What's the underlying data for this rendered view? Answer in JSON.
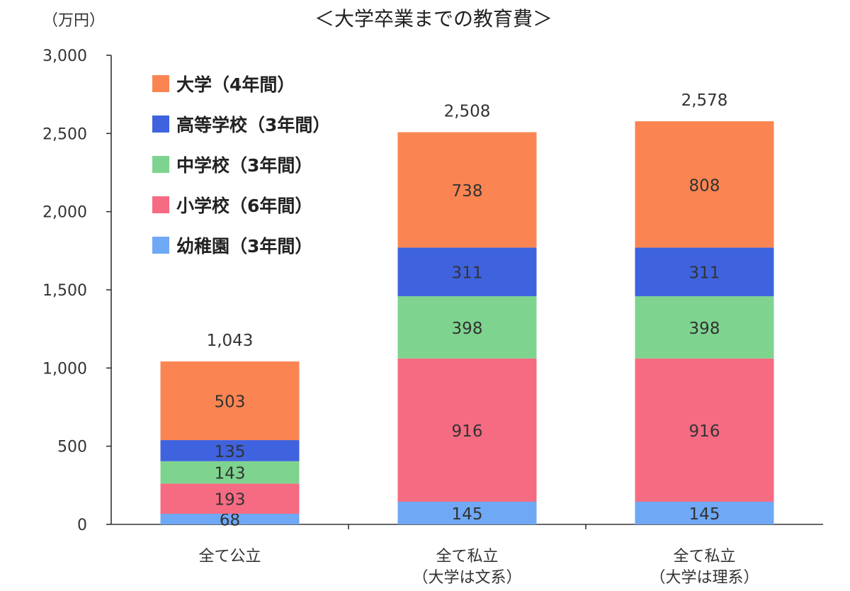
{
  "chart_data": {
    "type": "bar",
    "stacked": true,
    "title": "＜大学卒業までの教育費＞",
    "unit_label": "（万円）",
    "ylim": [
      0,
      3000
    ],
    "yticks": [
      0,
      500,
      1000,
      1500,
      2000,
      2500,
      3000
    ],
    "ytick_labels": [
      "0",
      "500",
      "1,000",
      "1,500",
      "2,000",
      "2,500",
      "3,000"
    ],
    "categories": [
      {
        "line1": "全て公立",
        "line2": ""
      },
      {
        "line1": "全て私立",
        "line2": "（大学は文系）"
      },
      {
        "line1": "全て私立",
        "line2": "（大学は理系）"
      }
    ],
    "totals": [
      1043,
      2508,
      2578
    ],
    "total_labels": [
      "1,043",
      "2,508",
      "2,578"
    ],
    "series": [
      {
        "name": "幼稚園（3年間）",
        "color": "#6fa8f5",
        "values": [
          68,
          145,
          145
        ]
      },
      {
        "name": "小学校（6年間）",
        "color": "#f56b82",
        "values": [
          193,
          916,
          916
        ]
      },
      {
        "name": "中学校（3年間）",
        "color": "#7ed48f",
        "values": [
          143,
          398,
          398
        ]
      },
      {
        "name": "高等学校（3年間）",
        "color": "#3f63de",
        "values": [
          135,
          311,
          311
        ]
      },
      {
        "name": "大学（4年間）",
        "color": "#fb8552",
        "values": [
          503,
          738,
          808
        ]
      }
    ],
    "legend_order": [
      4,
      3,
      2,
      1,
      0
    ],
    "legend_position": "top-left",
    "grid": false
  }
}
